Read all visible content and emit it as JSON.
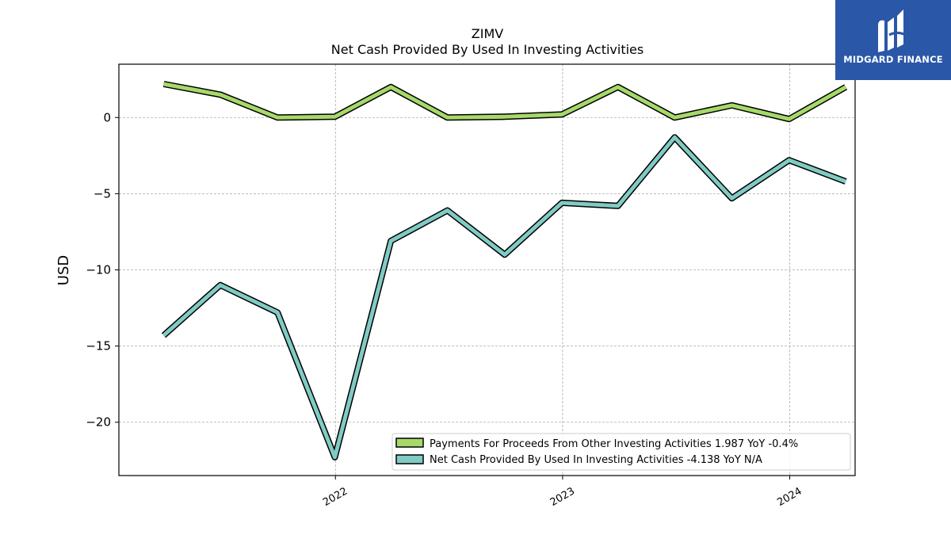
{
  "brand": {
    "name": "MIDGARD FINANCE",
    "logo_color": "#2b57a8"
  },
  "chart_data": {
    "type": "line",
    "title": "ZIMV",
    "subtitle": "Net Cash Provided By Used In Investing Activities",
    "ylabel": "USD",
    "xlabel": "",
    "ylim": [
      -23.5,
      3.5
    ],
    "yticks": [
      0,
      -5,
      -10,
      -15,
      -20
    ],
    "ytick_labels": [
      "0",
      "−5",
      "−10",
      "−15",
      "−20"
    ],
    "xlim": [
      "2021-01-18",
      "2024-04-15"
    ],
    "xticks": [
      "2022-01-01",
      "2023-01-01",
      "2024-01-01"
    ],
    "xtick_labels": [
      "2022",
      "2023",
      "2024"
    ],
    "grid": true,
    "legend_position": "lower-right",
    "x": [
      "2021-03-31",
      "2021-06-30",
      "2021-09-30",
      "2021-12-31",
      "2022-03-31",
      "2022-06-30",
      "2022-09-30",
      "2022-12-31",
      "2023-03-31",
      "2023-06-30",
      "2023-09-30",
      "2023-12-31",
      "2024-03-31"
    ],
    "series": [
      {
        "name": "Payments For Proceeds From Other Investing Activities",
        "legend_label": "Payments For Proceeds From Other Investing Activities  1.987 YoY -0.4%",
        "color": "#a6d96a",
        "values": [
          2.2,
          1.5,
          0.0,
          0.05,
          2.0,
          0.0,
          0.05,
          0.2,
          2.0,
          0.0,
          0.8,
          -0.1,
          2.0
        ]
      },
      {
        "name": "Net Cash Provided By Used In Investing Activities",
        "legend_label": "Net Cash Provided By Used In Investing Activities  -4.138 YoY N/A",
        "color": "#80cbc4",
        "values": [
          -14.3,
          -11.0,
          -12.8,
          -22.3,
          -8.1,
          -6.1,
          -9.0,
          -5.6,
          -5.8,
          -1.3,
          -5.3,
          -2.8,
          -4.2
        ]
      }
    ]
  }
}
